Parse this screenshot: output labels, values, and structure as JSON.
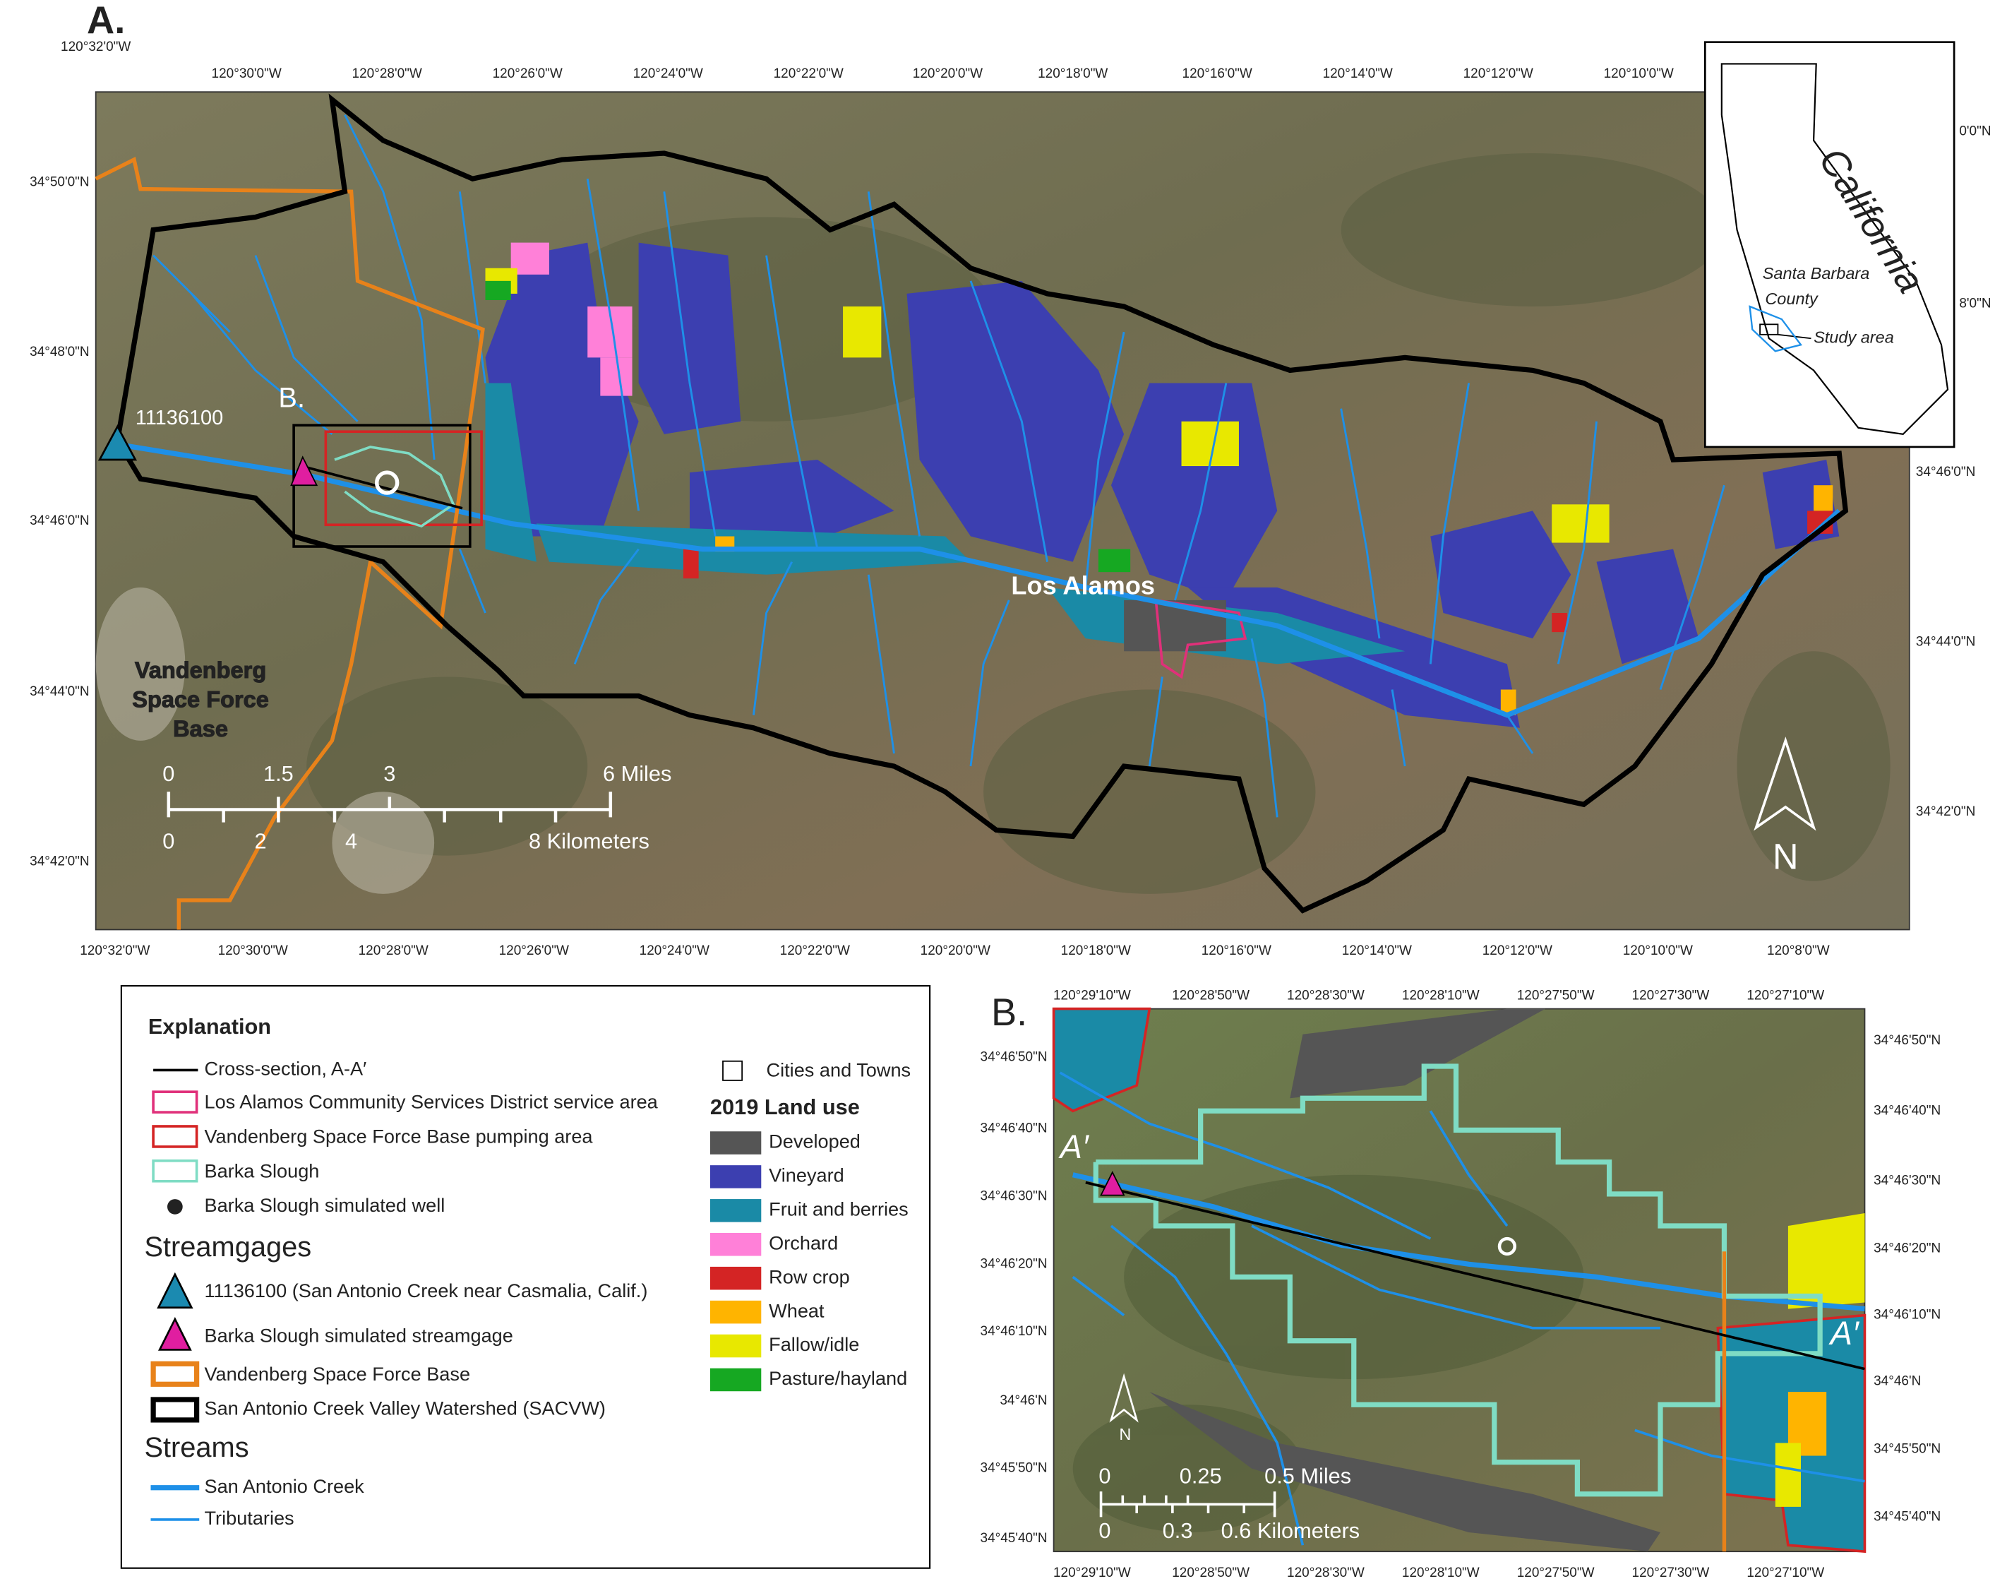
{
  "panel_a": {
    "label": "A.",
    "top_longitudes": [
      "120°32'0\"W",
      "120°30'0\"W",
      "120°28'0\"W",
      "120°26'0\"W",
      "120°24'0\"W",
      "120°22'0\"W",
      "120°20'0\"W",
      "120°18'0\"W",
      "120°16'0\"W",
      "120°14'0\"W",
      "120°12'0\"W",
      "120°10'0\"W"
    ],
    "bottom_longitudes": [
      "120°32'0\"W",
      "120°30'0\"W",
      "120°28'0\"W",
      "120°26'0\"W",
      "120°24'0\"W",
      "120°22'0\"W",
      "120°20'0\"W",
      "120°18'0\"W",
      "120°16'0\"W",
      "120°14'0\"W",
      "120°12'0\"W",
      "120°10'0\"W",
      "120°8'0\"W"
    ],
    "left_latitudes": [
      "34°50'0\"N",
      "34°48'0\"N",
      "34°46'0\"N",
      "34°44'0\"N",
      "34°42'0\"N"
    ],
    "right_latitudes": [
      "0'0\"N",
      "8'0\"N",
      "34°46'0\"N",
      "34°44'0\"N",
      "34°42'0\"N"
    ],
    "streamgage_label": "11136100",
    "inset_label": "B.",
    "town_label": "Los Alamos",
    "base_label": [
      "Vandenberg",
      "Space Force",
      "Base"
    ],
    "scale_miles": [
      "0",
      "1.5",
      "3",
      "6 Miles"
    ],
    "scale_km": [
      "0",
      "2",
      "4",
      "8 Kilometers"
    ],
    "north": "N",
    "locator": {
      "state": "California",
      "county": [
        "Santa Barbara",
        "County"
      ],
      "study_area": "Study area"
    }
  },
  "legend": {
    "title": "Explanation",
    "items": [
      "Cross-section, A-A′",
      "Los Alamos Community Services District service area",
      "Vandenberg Space Force Base pumping area",
      "Barka Slough",
      "Barka Slough simulated well"
    ],
    "streamgages_heading": "Streamgages",
    "streamgage_items": [
      "11136100 (San Antonio Creek near Casmalia, Calif.)",
      "Barka Slough simulated streamgage",
      "Vandenberg Space Force Base",
      "San Antonio Creek Valley Watershed (SACVW)"
    ],
    "streams_heading": "Streams",
    "stream_items": [
      "San Antonio Creek",
      "Tributaries"
    ],
    "cities": "Cities and Towns",
    "land_use_title": "2019 Land use",
    "land_use": [
      {
        "name": "Developed",
        "color": "#555555"
      },
      {
        "name": "Vineyard",
        "color": "#3c3fb0"
      },
      {
        "name": "Fruit and berries",
        "color": "#1a8aa6"
      },
      {
        "name": "Orchard",
        "color": "#ff80d8"
      },
      {
        "name": "Row crop",
        "color": "#d42424"
      },
      {
        "name": "Wheat",
        "color": "#ffb400"
      },
      {
        "name": "Fallow/idle",
        "color": "#e8e800"
      },
      {
        "name": "Pasture/hayland",
        "color": "#16a822"
      }
    ]
  },
  "panel_b": {
    "label": "B.",
    "top_longitudes": [
      "120°29'10\"W",
      "120°28'50\"W",
      "120°28'30\"W",
      "120°28'10\"W",
      "120°27'50\"W",
      "120°27'30\"W",
      "120°27'10\"W"
    ],
    "bottom_longitudes": [
      "120°29'10\"W",
      "120°28'50\"W",
      "120°28'30\"W",
      "120°28'10\"W",
      "120°27'50\"W",
      "120°27'30\"W",
      "120°27'10\"W"
    ],
    "left_latitudes": [
      "34°46'50\"N",
      "34°46'40\"N",
      "34°46'30\"N",
      "34°46'20\"N",
      "34°46'10\"N",
      "34°46'N",
      "34°45'50\"N",
      "34°45'40\"N"
    ],
    "right_latitudes": [
      "34°46'50\"N",
      "34°46'40\"N",
      "34°46'30\"N",
      "34°46'20\"N",
      "34°46'10\"N",
      "34°46'N",
      "34°45'50\"N",
      "34°45'40\"N"
    ],
    "section_start": "A′",
    "section_end": "A′",
    "scale_miles": [
      "0",
      "0.25",
      "0.5 Miles"
    ],
    "scale_km": [
      "0",
      "0.3",
      "0.6 Kilometers"
    ],
    "north": "N"
  }
}
